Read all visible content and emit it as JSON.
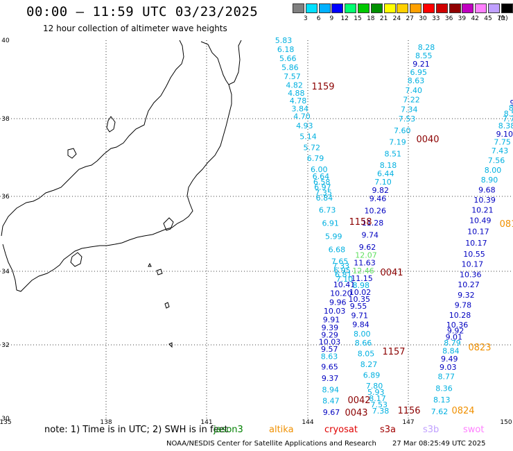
{
  "header": {
    "title": "00:00 – 11:59 UTC 03/23/2025",
    "subtitle": "12 hour collection of altimeter wave heights"
  },
  "legend": {
    "unit": "(ft)",
    "items": [
      {
        "label": "",
        "color": "#808080"
      },
      {
        "label": "3",
        "color": "#00e0ff"
      },
      {
        "label": "6",
        "color": "#00b0ff"
      },
      {
        "label": "9",
        "color": "#0000ff"
      },
      {
        "label": "12",
        "color": "#00ff70"
      },
      {
        "label": "15",
        "color": "#00c800"
      },
      {
        "label": "18",
        "color": "#009000"
      },
      {
        "label": "21",
        "color": "#ffff00"
      },
      {
        "label": "24",
        "color": "#ffd000"
      },
      {
        "label": "27",
        "color": "#ffa000"
      },
      {
        "label": "30",
        "color": "#ff0000"
      },
      {
        "label": "33",
        "color": "#d00000"
      },
      {
        "label": "36",
        "color": "#900000"
      },
      {
        "label": "39",
        "color": "#c000c0"
      },
      {
        "label": "42",
        "color": "#ff80ff"
      },
      {
        "label": "45",
        "color": "#c0a0ff"
      },
      {
        "label": "70",
        "color": "#000000"
      }
    ]
  },
  "axes": {
    "lon_ticks": [
      "135",
      "138",
      "141",
      "144",
      "147",
      "150"
    ],
    "lat_ticks": [
      "40",
      "38",
      "36",
      "34",
      "32",
      "30"
    ]
  },
  "colors": {
    "light_blue": "#00b0e0",
    "blue": "#0000c0",
    "light_green": "#60e060",
    "dark_red": "#8b0000",
    "orange": "#f09000"
  },
  "tracks": [
    {
      "values": [
        "5.83",
        "6.18",
        "5.66",
        "5.86",
        "7.57",
        "4.82",
        "4.88",
        "4.78",
        "3.84",
        "4.70",
        "4.93",
        "5.14",
        "5.72",
        "6.79",
        "6.00",
        "6.64",
        "6.58",
        "6.97",
        "7.35",
        "6.84",
        "6.73",
        "6.91",
        "5.99",
        "6.68",
        "7.65",
        "7.33",
        "6.95",
        "6.81",
        "7.10",
        "10.41",
        "10.20",
        "9.96",
        "10.03",
        "9.91",
        "9.39",
        "9.29",
        "10.03",
        "9.57",
        "8.63",
        "9.65",
        "9.37",
        "8.94",
        "8.47",
        "9.67"
      ]
    },
    {
      "values": [
        "8.28",
        "8.55",
        "9.21",
        "6.95",
        "8.63",
        "7.40",
        "7.22",
        "7.34",
        "7.53",
        "7.60",
        "7.19",
        "8.51",
        "8.18",
        "6.44",
        "7.10",
        "9.82",
        "9.46",
        "10.26",
        "11.28",
        "9.74",
        "9.62",
        "12.07",
        "11.63",
        "12.46",
        "11.15",
        "8.98",
        "10.02",
        "10.35",
        "9.55",
        "9.71",
        "9.84",
        "8.00",
        "8.66",
        "8.05",
        "8.27",
        "6.89",
        "7.80",
        "5.93",
        "8.17",
        "7.53",
        "7.38"
      ]
    },
    {
      "values": [
        "9",
        "8",
        "8.5",
        "7.7",
        "8.38",
        "9.10",
        "7.75",
        "7.43",
        "7.56",
        "8.00",
        "8.90",
        "9.68",
        "10.39",
        "10.21",
        "10.49",
        "10.17",
        "10.17",
        "10.55",
        "10.17",
        "10.36",
        "10.27",
        "9.32",
        "9.78",
        "10.28",
        "10.36",
        "9.92",
        "9.01",
        "8.79",
        "8.84",
        "9.49",
        "9.03",
        "8.77",
        "8.36",
        "8.13",
        "7.62"
      ]
    }
  ],
  "time_labels": [
    {
      "text": "1159",
      "color": "dark_red"
    },
    {
      "text": "0040",
      "color": "dark_red"
    },
    {
      "text": "1158",
      "color": "dark_red"
    },
    {
      "text": "0041",
      "color": "dark_red"
    },
    {
      "text": "1157",
      "color": "dark_red"
    },
    {
      "text": "0042",
      "color": "dark_red"
    },
    {
      "text": "0043",
      "color": "dark_red"
    },
    {
      "text": "1156",
      "color": "dark_red"
    },
    {
      "text": "0823",
      "color": "orange"
    },
    {
      "text": "0824",
      "color": "orange"
    },
    {
      "text": "081",
      "color": "orange"
    }
  ],
  "footer": {
    "note": "note: 1) Time is in UTC; 2) SWH is in feet",
    "satellites": [
      {
        "name": "jason3",
        "color": "#008000"
      },
      {
        "name": "altika",
        "color": "#f09000"
      },
      {
        "name": "cryosat",
        "color": "#e00000"
      },
      {
        "name": "s3a",
        "color": "#a00000"
      },
      {
        "name": "s3b",
        "color": "#c0a0ff"
      },
      {
        "name": "swot",
        "color": "#ff80ff"
      }
    ],
    "credit": "NOAA/NESDIS Center for Satellite Applications and Research",
    "timestamp": "27 Mar 08:25:49 UTC 2025"
  }
}
